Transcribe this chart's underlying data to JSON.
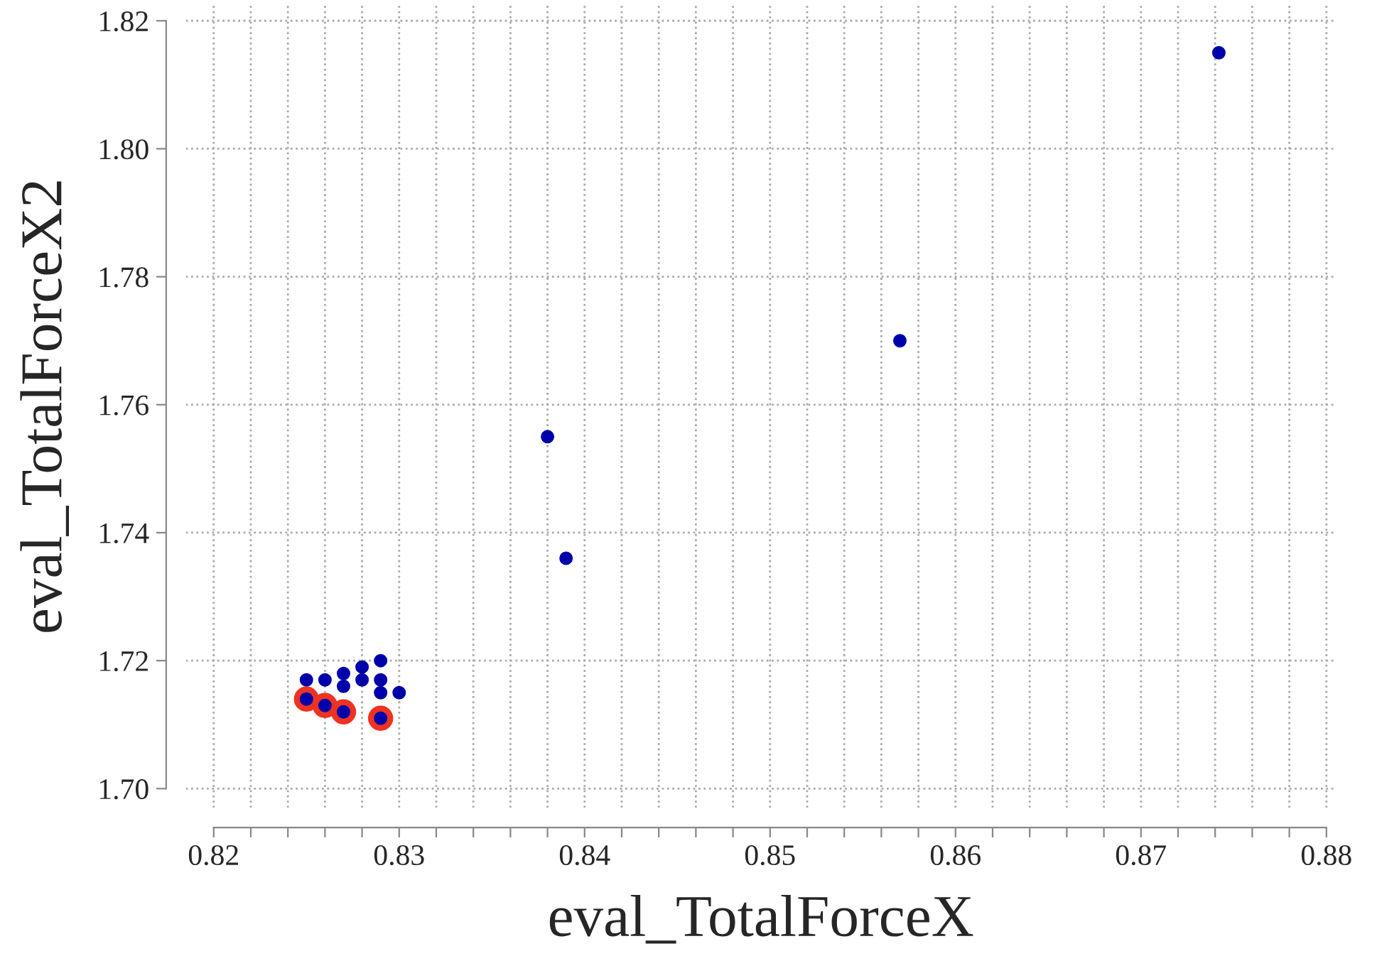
{
  "chart_data": {
    "type": "scatter",
    "xlabel": "eval_TotalForceX",
    "ylabel": "eval_TotalForceX2",
    "series": [
      {
        "color": "#0000aa",
        "x": [
          0.825,
          0.826,
          0.827,
          0.827,
          0.828,
          0.828,
          0.829,
          0.829,
          0.829,
          0.83,
          0.825,
          0.826,
          0.827,
          0.829,
          0.838,
          0.839,
          0.857,
          0.8742
        ],
        "values": [
          1.717,
          1.717,
          1.718,
          1.716,
          1.719,
          1.717,
          1.72,
          1.717,
          1.715,
          1.715,
          1.714,
          1.713,
          1.712,
          1.711,
          1.755,
          1.736,
          1.77,
          1.815
        ]
      },
      {
        "color": "#ee3322",
        "x": [
          0.825,
          0.826,
          0.827,
          0.829
        ],
        "values": [
          1.714,
          1.713,
          1.712,
          1.711
        ]
      }
    ],
    "xlim": [
      0.8185,
      0.8805
    ],
    "ylim": [
      1.697,
      1.8225
    ],
    "xticks": [
      0.82,
      {
        "value": 0.822,
        "label": null
      },
      {
        "value": 0.824,
        "label": null
      },
      {
        "value": 0.826,
        "label": null
      },
      {
        "value": 0.828,
        "label": null
      },
      0.83,
      {
        "value": 0.832,
        "label": null
      },
      {
        "value": 0.834,
        "label": null
      },
      {
        "value": 0.836,
        "label": null
      },
      {
        "value": 0.838,
        "label": null
      },
      0.84,
      {
        "value": 0.842,
        "label": null
      },
      {
        "value": 0.844,
        "label": null
      },
      {
        "value": 0.846,
        "label": null
      },
      {
        "value": 0.848,
        "label": null
      },
      0.85,
      {
        "value": 0.852,
        "label": null
      },
      {
        "value": 0.854,
        "label": null
      },
      {
        "value": 0.856,
        "label": null
      },
      {
        "value": 0.858,
        "label": null
      },
      0.86,
      {
        "value": 0.862,
        "label": null
      },
      {
        "value": 0.864,
        "label": null
      },
      {
        "value": 0.866,
        "label": null
      },
      {
        "value": 0.868,
        "label": null
      },
      0.87,
      {
        "value": 0.872,
        "label": null
      },
      {
        "value": 0.874,
        "label": null
      },
      {
        "value": 0.876,
        "label": null
      },
      {
        "value": 0.878,
        "label": null
      },
      0.88
    ],
    "yticks": [
      {
        "value": 1.7,
        "label": "1.70"
      },
      {
        "value": 1.72,
        "label": "1.72"
      },
      {
        "value": 1.74,
        "label": "1.74"
      },
      {
        "value": 1.76,
        "label": "1.76"
      },
      {
        "value": 1.78,
        "label": "1.78"
      },
      {
        "value": 1.8,
        "label": "1.80"
      },
      {
        "value": 1.82,
        "label": "1.82"
      }
    ],
    "grid": true,
    "marker": "circle",
    "legend": false
  }
}
